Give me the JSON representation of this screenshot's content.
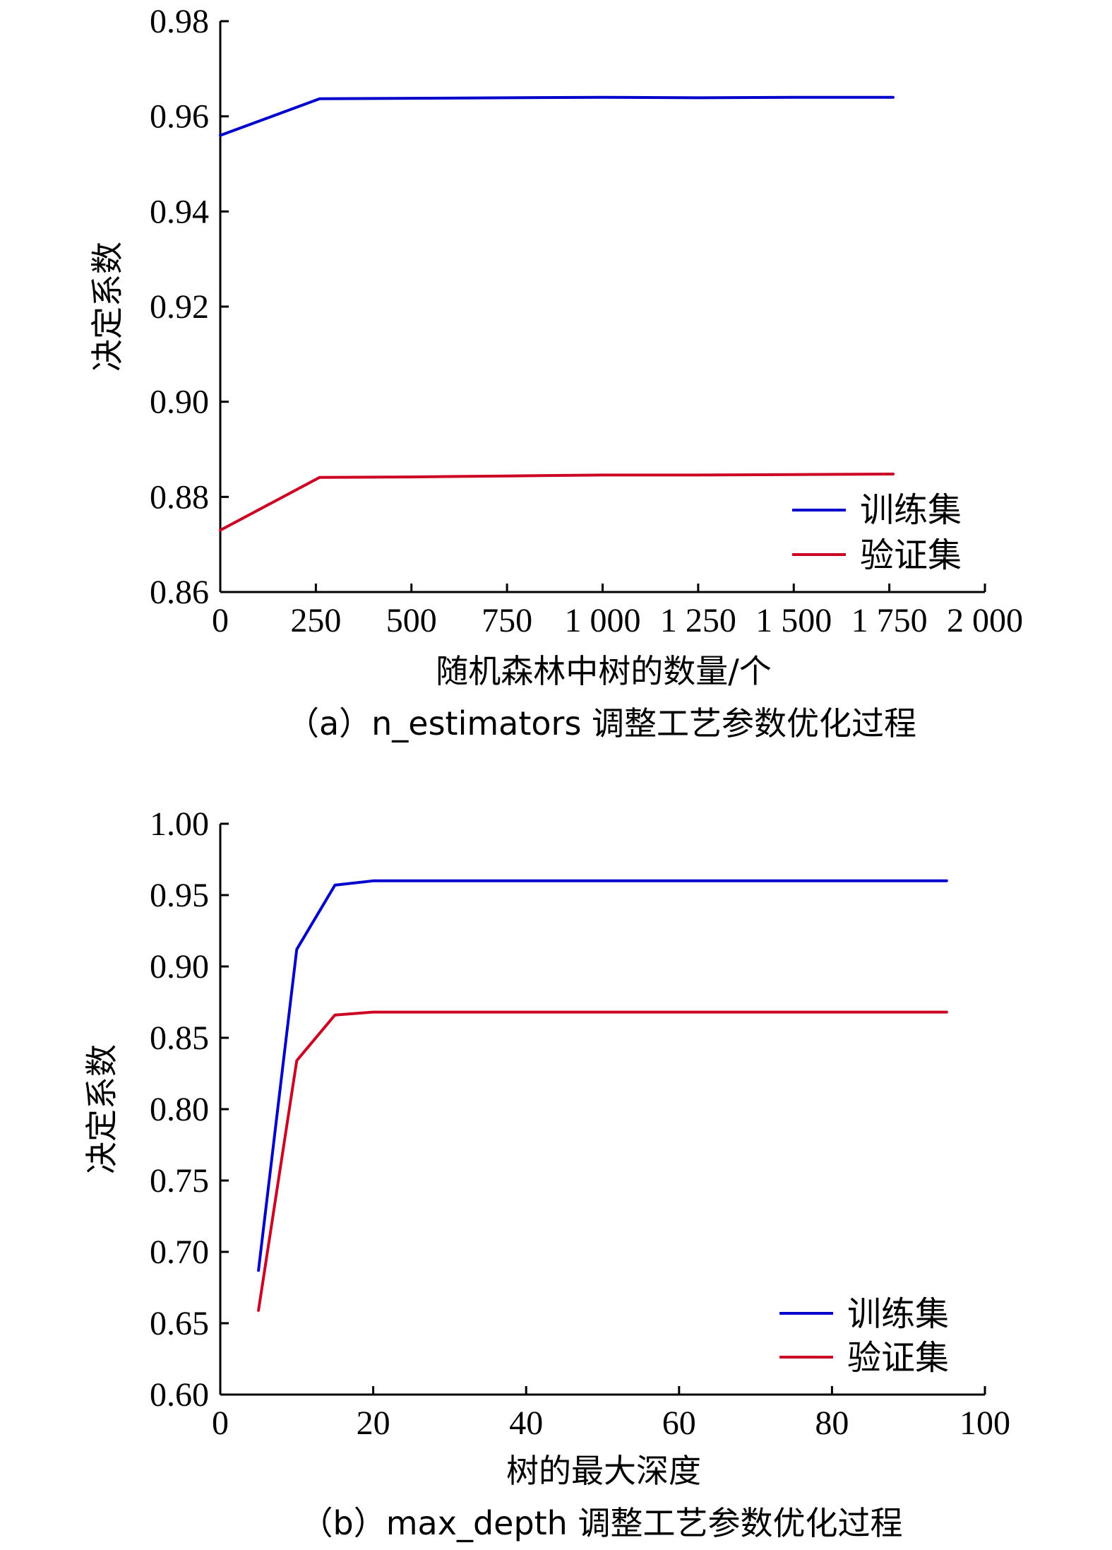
{
  "charts": [
    {
      "type": "line",
      "caption": "（a）n_estimators 调整工艺参数优化过程",
      "xlabel": "随机森林中树的数量/个",
      "ylabel": "决定系数",
      "xlim": [
        0,
        2000
      ],
      "ylim": [
        0.86,
        0.98
      ],
      "xticks": [
        0,
        250,
        500,
        750,
        1000,
        1250,
        1500,
        1750,
        2000
      ],
      "xtick_labels": [
        "0",
        "250",
        "500",
        "750",
        "1 000",
        "1 250",
        "1 500",
        "1 750",
        "2 000"
      ],
      "yticks": [
        0.86,
        0.88,
        0.9,
        0.92,
        0.94,
        0.96,
        0.98
      ],
      "ytick_labels": [
        "0.86",
        "0.88",
        "0.90",
        "0.92",
        "0.94",
        "0.96",
        "0.98"
      ],
      "legend_position": "bottom-right",
      "grid": false,
      "series": [
        {
          "name": "训练集",
          "color": "#0000cc",
          "x": [
            0,
            260,
            500,
            750,
            1000,
            1250,
            1500,
            1760
          ],
          "y": [
            0.956,
            0.9637,
            0.9638,
            0.9639,
            0.964,
            0.9639,
            0.964,
            0.964
          ]
        },
        {
          "name": "验证集",
          "color": "#cc0022",
          "x": [
            0,
            260,
            500,
            750,
            1000,
            1250,
            1500,
            1760
          ],
          "y": [
            0.873,
            0.8841,
            0.8842,
            0.8844,
            0.8846,
            0.8846,
            0.8847,
            0.8848
          ]
        }
      ]
    },
    {
      "type": "line",
      "caption": "（b）max_depth 调整工艺参数优化过程",
      "xlabel": "树的最大深度",
      "ylabel": "决定系数",
      "xlim": [
        0,
        100
      ],
      "ylim": [
        0.6,
        1.0
      ],
      "xticks": [
        0,
        20,
        40,
        60,
        80,
        100
      ],
      "xtick_labels": [
        "0",
        "20",
        "40",
        "60",
        "80",
        "100"
      ],
      "yticks": [
        0.6,
        0.65,
        0.7,
        0.75,
        0.8,
        0.85,
        0.9,
        0.95,
        1.0
      ],
      "ytick_labels": [
        "0.60",
        "0.65",
        "0.70",
        "0.75",
        "0.80",
        "0.85",
        "0.90",
        "0.95",
        "1.00"
      ],
      "legend_position": "bottom-right",
      "grid": false,
      "series": [
        {
          "name": "训练集",
          "color": "#0000cc",
          "x": [
            5,
            10,
            15,
            20,
            25,
            30,
            40,
            50,
            60,
            70,
            80,
            90,
            95
          ],
          "y": [
            0.687,
            0.912,
            0.957,
            0.96,
            0.96,
            0.96,
            0.96,
            0.96,
            0.96,
            0.96,
            0.96,
            0.96,
            0.96
          ]
        },
        {
          "name": "验证集",
          "color": "#cc0022",
          "x": [
            5,
            10,
            15,
            20,
            25,
            30,
            40,
            50,
            60,
            70,
            80,
            90,
            95
          ],
          "y": [
            0.659,
            0.834,
            0.866,
            0.868,
            0.868,
            0.868,
            0.868,
            0.868,
            0.868,
            0.868,
            0.868,
            0.868,
            0.868
          ]
        }
      ]
    }
  ]
}
